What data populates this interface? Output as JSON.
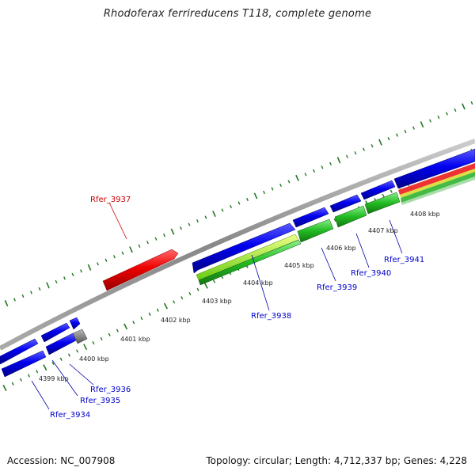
{
  "header": {
    "title": "Rhodoferax ferrireducens T118, complete genome"
  },
  "footer": {
    "accession": "Accession: NC_007908",
    "summary": "Topology: circular; Length: 4,712,337 bp; Genes: 4,228"
  },
  "scale": {
    "tick_labels": [
      "4399 kbp",
      "4400 kbp",
      "4401 kbp",
      "4402 kbp",
      "4403 kbp",
      "4404 kbp",
      "4405 kbp",
      "4406 kbp",
      "4407 kbp",
      "4408 kbp"
    ]
  },
  "genes": [
    {
      "label": "Rfer_3934",
      "color": "#0000cc"
    },
    {
      "label": "Rfer_3935",
      "color": "#0000cc"
    },
    {
      "label": "Rfer_3936",
      "color": "#0000cc"
    },
    {
      "label": "Rfer_3937",
      "color": "#cc0000"
    },
    {
      "label": "Rfer_3938",
      "color": "#0000cc"
    },
    {
      "label": "Rfer_3939",
      "color": "#0000cc"
    },
    {
      "label": "Rfer_3940",
      "color": "#0000cc"
    },
    {
      "label": "Rfer_3941",
      "color": "#0000cc"
    }
  ],
  "colors": {
    "cds": "#0000ee",
    "highlight": "#ee0000",
    "rna_light": "#88ee22",
    "rna_green": "#22aa22",
    "backbone": "#999999",
    "ticks": "#227722",
    "pseudo": "#888888"
  }
}
